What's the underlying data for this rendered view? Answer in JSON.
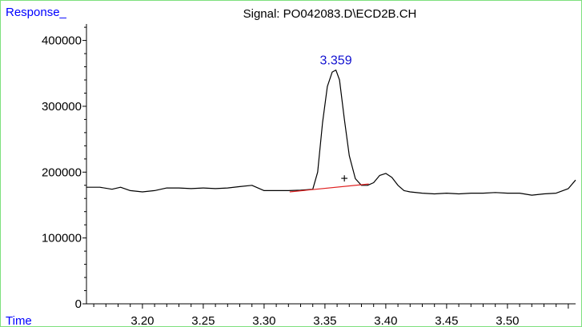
{
  "labels": {
    "y_corner": "Response_",
    "x_corner": "Time",
    "title": "Signal: PO042083.D\\ECD2B.CH",
    "peak_label": "3.359",
    "peak_marker": "+"
  },
  "colors": {
    "frame": "#7ee07e",
    "corner_labels": "#0000ff",
    "peak_label": "#1010d0",
    "trace": "#000000",
    "baseline": "#e02020",
    "text": "#000000"
  },
  "chart_data": {
    "type": "line",
    "title": "Signal: PO042083.D\\ECD2B.CH",
    "xlabel": "Time",
    "ylabel": "Response_",
    "xlim": [
      3.154,
      3.556
    ],
    "ylim": [
      0,
      425000
    ],
    "x_ticks": [
      "3.20",
      "3.25",
      "3.30",
      "3.35",
      "3.40",
      "3.45",
      "3.50"
    ],
    "y_ticks": [
      "0",
      "100000",
      "200000",
      "300000",
      "400000"
    ],
    "grid": false,
    "series": [
      {
        "x": [
          3.154,
          3.165,
          3.175,
          3.182,
          3.19,
          3.2,
          3.21,
          3.22,
          3.23,
          3.24,
          3.25,
          3.26,
          3.27,
          3.28,
          3.29,
          3.3,
          3.31,
          3.32,
          3.33,
          3.34,
          3.344,
          3.348,
          3.352,
          3.356,
          3.359,
          3.362,
          3.366,
          3.37,
          3.375,
          3.38,
          3.385,
          3.39,
          3.395,
          3.4,
          3.405,
          3.41,
          3.415,
          3.42,
          3.43,
          3.44,
          3.45,
          3.46,
          3.47,
          3.48,
          3.49,
          3.5,
          3.51,
          3.52,
          3.53,
          3.54,
          3.55,
          3.556
        ],
        "y": [
          177000,
          177000,
          174000,
          177000,
          172000,
          170000,
          172000,
          176000,
          176000,
          175000,
          176000,
          175000,
          176000,
          178000,
          180000,
          172000,
          172000,
          172000,
          172500,
          174000,
          200000,
          275000,
          330000,
          352000,
          355000,
          340000,
          280000,
          225000,
          190000,
          180000,
          180000,
          184000,
          195000,
          198000,
          192000,
          180000,
          172000,
          170000,
          168000,
          167000,
          168000,
          167000,
          168000,
          168000,
          169000,
          168000,
          168000,
          165000,
          167000,
          168000,
          175000,
          188000
        ]
      }
    ],
    "integration_baseline": {
      "x": [
        3.321,
        3.386
      ],
      "y": [
        170000,
        182000
      ]
    },
    "annotations": [
      {
        "text": "3.359",
        "x": 3.359,
        "y": 355000
      },
      {
        "text": "+",
        "x": 3.366,
        "y": 191000
      }
    ]
  }
}
